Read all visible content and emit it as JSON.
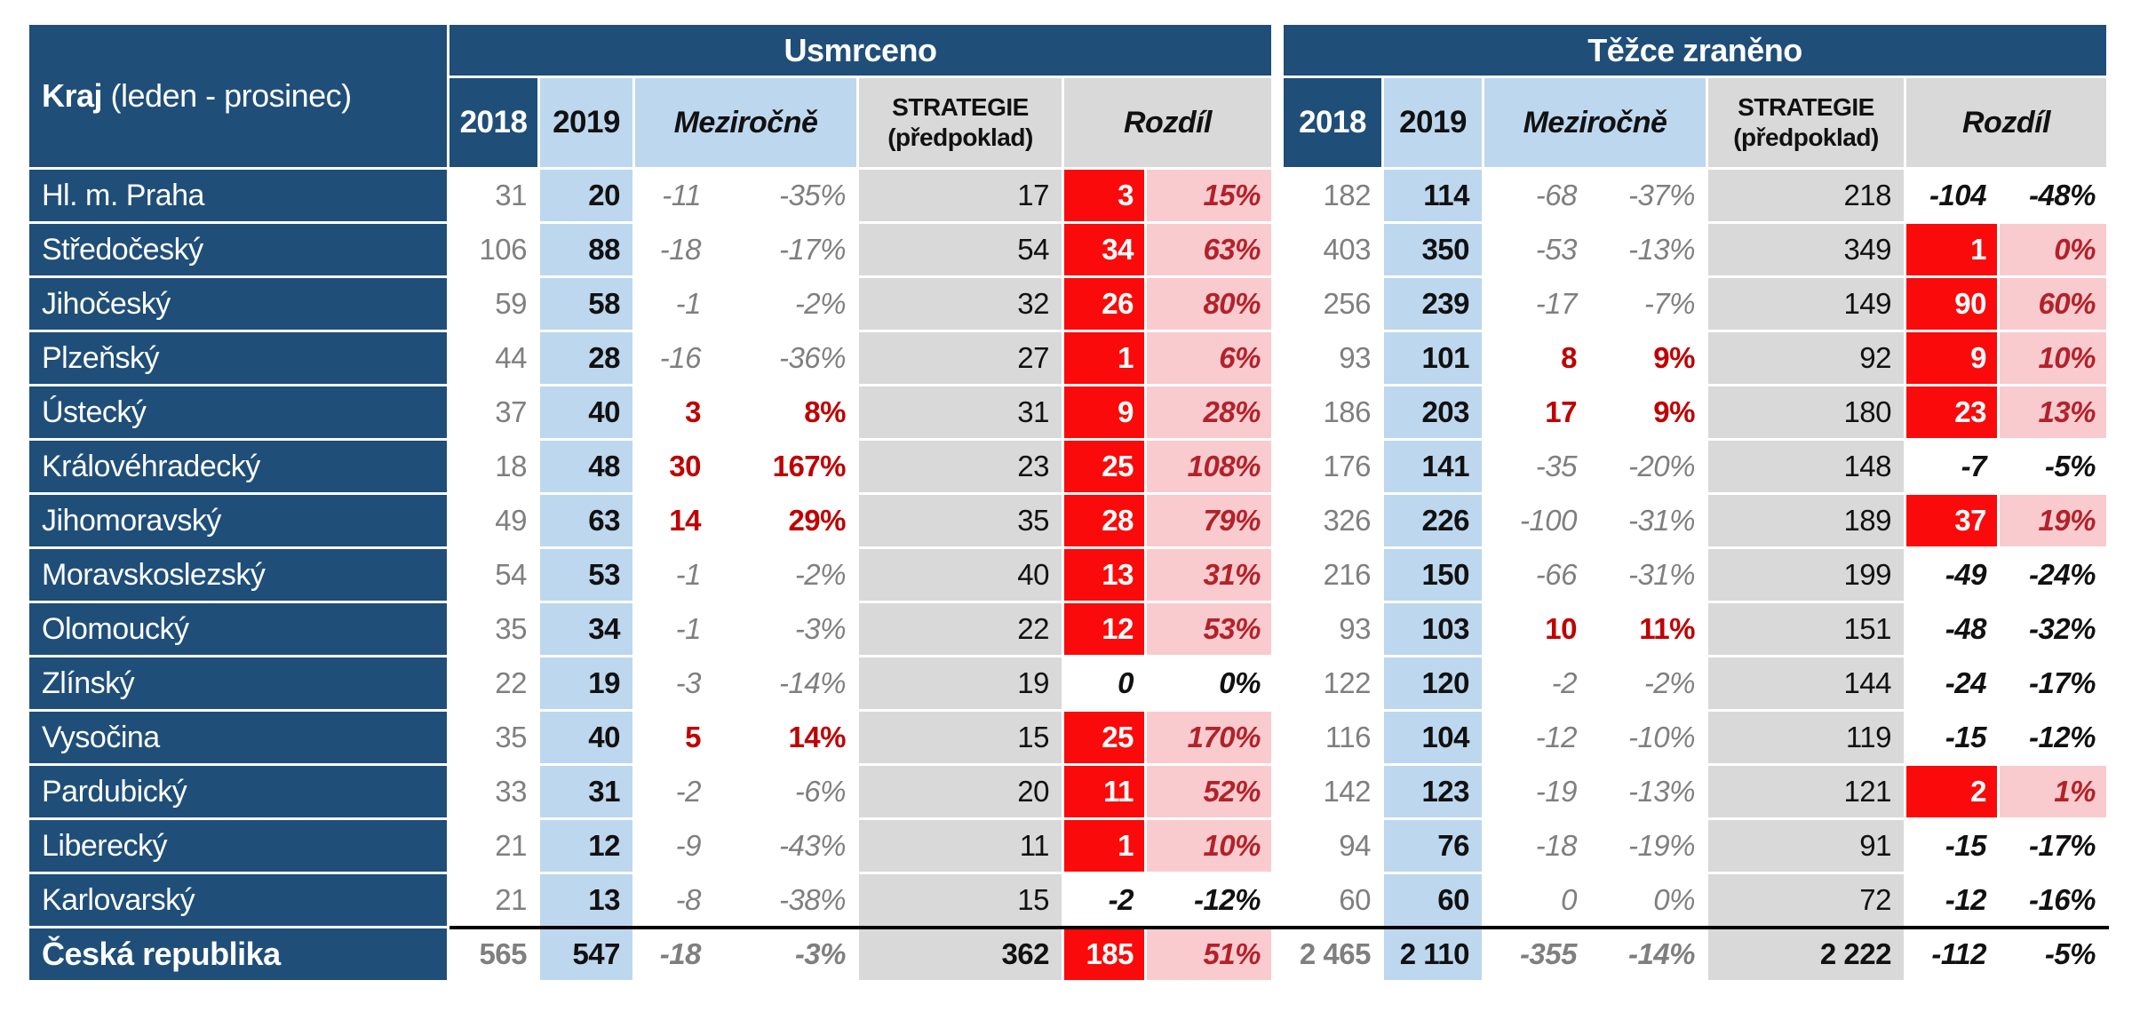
{
  "header": {
    "kraj_bold": "Kraj",
    "kraj_rest": " (leden - prosinec)"
  },
  "sections": [
    {
      "title": "Usmrceno"
    },
    {
      "title": "Těžce zraněno"
    }
  ],
  "columns": {
    "y2018": "2018",
    "y2019": "2019",
    "mezirocne": "Meziročně",
    "strategie_line1": "STRATEGIE",
    "strategie_line2": "(předpoklad)",
    "rozdil": "Rozdíl"
  },
  "colors": {
    "header_blue": "#1F4E79",
    "light_blue": "#BDD7EE",
    "gray_fill": "#D9D9D9",
    "red_fill": "#FA0A0A",
    "pink_fill": "#F9CBCE",
    "dark_red_text": "#C00000",
    "pink_cell_text": "#B2222B",
    "gray_text": "#7F7F7F"
  },
  "rows": [
    {
      "kraj": "Hl. m. Praha",
      "u": [
        "31",
        "20",
        "-11",
        "-35%",
        "17",
        "3",
        "15%"
      ],
      "t": [
        "182",
        "114",
        "-68",
        "-37%",
        "218",
        "-104",
        "-48%"
      ]
    },
    {
      "kraj": "Středočeský",
      "u": [
        "106",
        "88",
        "-18",
        "-17%",
        "54",
        "34",
        "63%"
      ],
      "t": [
        "403",
        "350",
        "-53",
        "-13%",
        "349",
        "1",
        "0%"
      ]
    },
    {
      "kraj": "Jihočeský",
      "u": [
        "59",
        "58",
        "-1",
        "-2%",
        "32",
        "26",
        "80%"
      ],
      "t": [
        "256",
        "239",
        "-17",
        "-7%",
        "149",
        "90",
        "60%"
      ]
    },
    {
      "kraj": "Plzeňský",
      "u": [
        "44",
        "28",
        "-16",
        "-36%",
        "27",
        "1",
        "6%"
      ],
      "t": [
        "93",
        "101",
        "8",
        "9%",
        "92",
        "9",
        "10%"
      ]
    },
    {
      "kraj": "Ústecký",
      "u": [
        "37",
        "40",
        "3",
        "8%",
        "31",
        "9",
        "28%"
      ],
      "t": [
        "186",
        "203",
        "17",
        "9%",
        "180",
        "23",
        "13%"
      ]
    },
    {
      "kraj": "Královéhradecký",
      "u": [
        "18",
        "48",
        "30",
        "167%",
        "23",
        "25",
        "108%"
      ],
      "t": [
        "176",
        "141",
        "-35",
        "-20%",
        "148",
        "-7",
        "-5%"
      ]
    },
    {
      "kraj": "Jihomoravský",
      "u": [
        "49",
        "63",
        "14",
        "29%",
        "35",
        "28",
        "79%"
      ],
      "t": [
        "326",
        "226",
        "-100",
        "-31%",
        "189",
        "37",
        "19%"
      ]
    },
    {
      "kraj": "Moravskoslezský",
      "u": [
        "54",
        "53",
        "-1",
        "-2%",
        "40",
        "13",
        "31%"
      ],
      "t": [
        "216",
        "150",
        "-66",
        "-31%",
        "199",
        "-49",
        "-24%"
      ]
    },
    {
      "kraj": "Olomoucký",
      "u": [
        "35",
        "34",
        "-1",
        "-3%",
        "22",
        "12",
        "53%"
      ],
      "t": [
        "93",
        "103",
        "10",
        "11%",
        "151",
        "-48",
        "-32%"
      ]
    },
    {
      "kraj": "Zlínský",
      "u": [
        "22",
        "19",
        "-3",
        "-14%",
        "19",
        "0",
        "0%"
      ],
      "t": [
        "122",
        "120",
        "-2",
        "-2%",
        "144",
        "-24",
        "-17%"
      ]
    },
    {
      "kraj": "Vysočina",
      "u": [
        "35",
        "40",
        "5",
        "14%",
        "15",
        "25",
        "170%"
      ],
      "t": [
        "116",
        "104",
        "-12",
        "-10%",
        "119",
        "-15",
        "-12%"
      ]
    },
    {
      "kraj": "Pardubický",
      "u": [
        "33",
        "31",
        "-2",
        "-6%",
        "20",
        "11",
        "52%"
      ],
      "t": [
        "142",
        "123",
        "-19",
        "-13%",
        "121",
        "2",
        "1%"
      ]
    },
    {
      "kraj": "Liberecký",
      "u": [
        "21",
        "12",
        "-9",
        "-43%",
        "11",
        "1",
        "10%"
      ],
      "t": [
        "94",
        "76",
        "-18",
        "-19%",
        "91",
        "-15",
        "-17%"
      ]
    },
    {
      "kraj": "Karlovarský",
      "u": [
        "21",
        "13",
        "-8",
        "-38%",
        "15",
        "-2",
        "-12%"
      ],
      "t": [
        "60",
        "60",
        "0",
        "0%",
        "72",
        "-12",
        "-16%"
      ]
    }
  ],
  "total": {
    "kraj": "Česká republika",
    "u": [
      "565",
      "547",
      "-18",
      "-3%",
      "362",
      "185",
      "51%"
    ],
    "t": [
      "2 465",
      "2 110",
      "-355",
      "-14%",
      "2 222",
      "-112",
      "-5%"
    ]
  }
}
